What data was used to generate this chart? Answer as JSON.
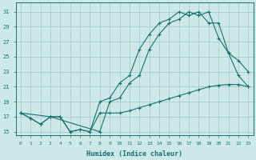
{
  "xlabel": "Humidex (Indice chaleur)",
  "bg_color": "#cce8e8",
  "grid_color": "#aacccc",
  "line_color": "#1a7070",
  "xlim": [
    -0.5,
    23.5
  ],
  "ylim": [
    14.5,
    32.2
  ],
  "xticks": [
    0,
    1,
    2,
    3,
    4,
    5,
    6,
    7,
    8,
    9,
    10,
    11,
    12,
    13,
    14,
    15,
    16,
    17,
    18,
    19,
    20,
    21,
    22,
    23
  ],
  "yticks": [
    15,
    17,
    19,
    21,
    23,
    25,
    27,
    29,
    31
  ],
  "curve1_x": [
    0,
    1,
    2,
    3,
    4,
    5,
    6,
    7,
    8,
    9,
    10,
    11,
    12,
    13,
    14,
    15,
    16,
    17,
    18,
    19,
    20,
    21,
    22,
    23
  ],
  "curve1_y": [
    17.5,
    16.8,
    16.0,
    17.0,
    17.0,
    15.0,
    15.3,
    15.0,
    19.0,
    19.5,
    21.5,
    22.5,
    26.0,
    28.0,
    29.5,
    30.0,
    31.0,
    30.5,
    31.0,
    29.5,
    29.5,
    25.5,
    22.5,
    21.0
  ],
  "curve2_x": [
    0,
    1,
    2,
    3,
    4,
    5,
    6,
    7,
    8,
    9,
    10,
    11,
    12,
    13,
    14,
    15,
    16,
    17,
    18,
    19,
    20,
    21,
    22,
    23
  ],
  "curve2_y": [
    17.5,
    16.8,
    16.0,
    17.0,
    17.0,
    15.0,
    15.3,
    15.0,
    17.5,
    17.5,
    17.5,
    17.8,
    18.2,
    18.6,
    19.0,
    19.4,
    19.8,
    20.2,
    20.6,
    21.0,
    21.2,
    21.3,
    21.3,
    21.0
  ],
  "curve3_x": [
    0,
    3,
    8,
    9,
    10,
    11,
    12,
    13,
    14,
    15,
    16,
    17,
    18,
    19,
    20,
    21,
    22,
    23
  ],
  "curve3_y": [
    17.5,
    17.0,
    15.0,
    19.0,
    19.5,
    21.5,
    22.5,
    26.0,
    28.0,
    29.5,
    30.0,
    31.0,
    30.5,
    31.0,
    27.5,
    25.5,
    24.5,
    23.0
  ]
}
